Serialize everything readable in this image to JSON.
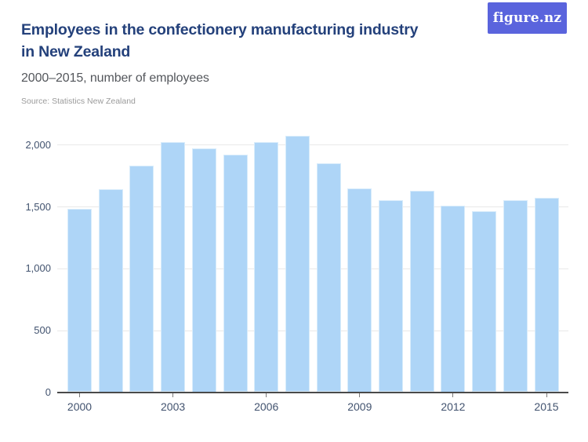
{
  "logo": {
    "text": "figure.nz",
    "bg_color": "#5a64dd",
    "text_color": "#ffffff"
  },
  "header": {
    "title": "Employees in the confectionery manufacturing industry in New Zealand",
    "title_line1": "Employees in the confectionery manufacturing industry",
    "title_line2": "in New Zealand",
    "subtitle": "2000–2015, number of employees",
    "source": "Source: Statistics New Zealand"
  },
  "chart_data": {
    "type": "bar",
    "title": "Employees in the confectionery manufacturing industry in New Zealand",
    "subtitle": "2000–2015, number of employees",
    "source": "Source: Statistics New Zealand",
    "xlabel": "",
    "ylabel": "number of employees",
    "categories": [
      2000,
      2001,
      2002,
      2003,
      2004,
      2005,
      2006,
      2007,
      2008,
      2009,
      2010,
      2011,
      2012,
      2013,
      2014,
      2015
    ],
    "values": [
      1480,
      1640,
      1830,
      2020,
      1970,
      1920,
      2020,
      2070,
      1850,
      1650,
      1550,
      1630,
      1510,
      1460,
      1550,
      1570
    ],
    "y_ticks": [
      0,
      500,
      1000,
      1500,
      2000
    ],
    "y_tick_labels": [
      "0",
      "500",
      "1,000",
      "1,500",
      "2,000"
    ],
    "x_tick_years": [
      2000,
      2003,
      2006,
      2009,
      2012,
      2015
    ],
    "x_tick_labels": [
      "2000",
      "2003",
      "2006",
      "2009",
      "2012",
      "2015"
    ],
    "ylim": [
      0,
      2150
    ],
    "grid": "horizontal",
    "legend": "none",
    "bar_color": "#aed5f7",
    "bar_edge_color": "#d8ecfb",
    "gridline_color": "#e9e9e9",
    "axis_color": "#4a4a4a",
    "tick_color": "#7a7a7a",
    "tick_label_color": "#42536f"
  }
}
